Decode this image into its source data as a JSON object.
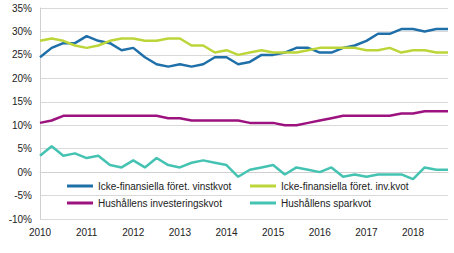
{
  "chart_data": {
    "type": "line",
    "categories": [
      "2010",
      null,
      null,
      null,
      "2011",
      null,
      null,
      null,
      "2012",
      null,
      null,
      null,
      "2013",
      null,
      null,
      null,
      "2014",
      null,
      null,
      null,
      "2015",
      null,
      null,
      null,
      "2016",
      null,
      null,
      null,
      "2017",
      null,
      null,
      null,
      "2018",
      null,
      null,
      null
    ],
    "series": [
      {
        "name": "Icke-finansiella föret. vinstkvot",
        "color": "#1f6fa9",
        "values": [
          24.5,
          26.5,
          27.5,
          27.5,
          29,
          28,
          27.5,
          26,
          26.5,
          24.5,
          23,
          22.5,
          23,
          22.5,
          23,
          24.5,
          24.5,
          23,
          23.5,
          25,
          25,
          25.5,
          26.5,
          26.5,
          25.5,
          25.5,
          26.5,
          27,
          28,
          29.5,
          29.5,
          30.5,
          30.5,
          30,
          30.5,
          30.5
        ]
      },
      {
        "name": "Icke-finansiella föret. inv.kvot",
        "color": "#bcd63a",
        "values": [
          28,
          28.5,
          28,
          27,
          26.5,
          27,
          28,
          28.5,
          28.5,
          28,
          28,
          28.5,
          28.5,
          27,
          27,
          25.5,
          26,
          25,
          25.5,
          26,
          25.5,
          25.5,
          25.5,
          26,
          26.5,
          26.5,
          26.5,
          26.5,
          26,
          26,
          26.5,
          25.5,
          26,
          26,
          25.5,
          25.5
        ]
      },
      {
        "name": "Hushållens investeringskvot",
        "color": "#9c127f",
        "values": [
          10.5,
          11,
          12,
          12,
          12,
          12,
          12,
          12,
          12,
          12,
          12,
          11.5,
          11.5,
          11,
          11,
          11,
          11,
          11,
          10.5,
          10.5,
          10.5,
          10,
          10,
          10.5,
          11,
          11.5,
          12,
          12,
          12,
          12,
          12,
          12.5,
          12.5,
          13,
          13,
          13
        ]
      },
      {
        "name": "Hushållens sparkvot",
        "color": "#45c3b2",
        "values": [
          3.5,
          5.5,
          3.5,
          4,
          3,
          3.5,
          1.5,
          1,
          2.5,
          1,
          3,
          1.5,
          1,
          2,
          2.5,
          2,
          1.5,
          -1,
          0.5,
          1,
          1.5,
          -0.5,
          1,
          0.5,
          0,
          1,
          -1,
          -0.5,
          -1,
          -0.5,
          -0.5,
          -0.5,
          -1.5,
          1,
          0.5,
          0.5
        ]
      }
    ],
    "ylim": [
      -10,
      35
    ],
    "yticks": [
      {
        "value": -10,
        "label": "-10%"
      },
      {
        "value": -5,
        "label": "-5%"
      },
      {
        "value": 0,
        "label": "0%"
      },
      {
        "value": 5,
        "label": "5%"
      },
      {
        "value": 10,
        "label": "10%"
      },
      {
        "value": 15,
        "label": "15%"
      },
      {
        "value": 20,
        "label": "20%"
      },
      {
        "value": 25,
        "label": "25%"
      },
      {
        "value": 30,
        "label": "30%"
      },
      {
        "value": 35,
        "label": "35%"
      }
    ],
    "grid": true,
    "legend": "lower left"
  }
}
